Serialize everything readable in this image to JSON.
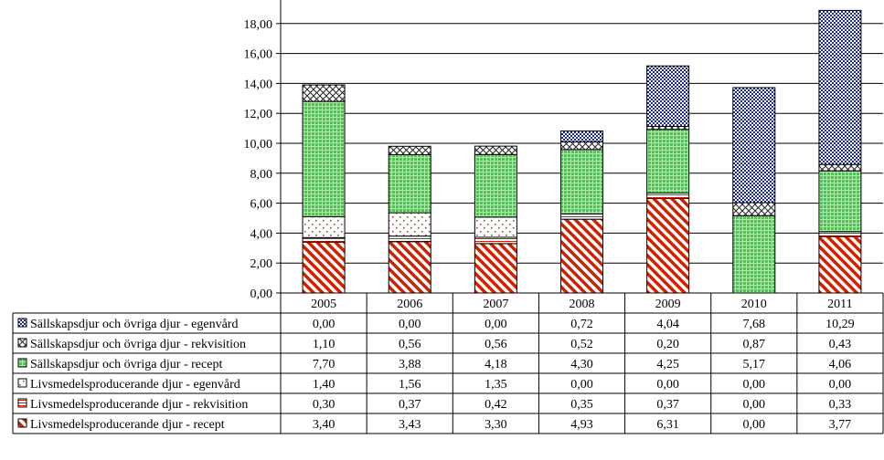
{
  "chart_data": {
    "type": "bar",
    "stacked": true,
    "categories": [
      "2005",
      "2006",
      "2007",
      "2008",
      "2009",
      "2010",
      "2011"
    ],
    "ylim": [
      0,
      20
    ],
    "y_ticks": [
      "0,00",
      "2,00",
      "4,00",
      "6,00",
      "8,00",
      "10,00",
      "12,00",
      "14,00",
      "16,00",
      "18,00"
    ],
    "grid": true,
    "legend_placement": "data-table-left",
    "series": [
      {
        "name": "Livsmedelsproducerande djur - recept",
        "values": [
          3.4,
          3.43,
          3.3,
          4.93,
          6.31,
          0.0,
          3.77
        ],
        "labels": [
          "3,40",
          "3,43",
          "3,30",
          "4,93",
          "6,31",
          "0,00",
          "3,77"
        ],
        "color": "#cc2200",
        "pattern": "diagonal-stripes"
      },
      {
        "name": "Livsmedelsproducerande djur - rekvisition",
        "values": [
          0.3,
          0.37,
          0.42,
          0.35,
          0.37,
          0.0,
          0.33
        ],
        "labels": [
          "0,30",
          "0,37",
          "0,42",
          "0,35",
          "0,37",
          "0,00",
          "0,33"
        ],
        "color": "#cc2200",
        "pattern": "horizontal-lines"
      },
      {
        "name": "Livsmedelsproducerande djur - egenvård",
        "values": [
          1.4,
          1.56,
          1.35,
          0.0,
          0.0,
          0.0,
          0.0
        ],
        "labels": [
          "1,40",
          "1,56",
          "1,35",
          "0,00",
          "0,00",
          "0,00",
          "0,00"
        ],
        "color": "#cc2200",
        "pattern": "sparse-dots"
      },
      {
        "name": "Sällskapsdjur och övriga djur - recept",
        "values": [
          7.7,
          3.88,
          4.18,
          4.3,
          4.25,
          5.17,
          4.06
        ],
        "labels": [
          "7,70",
          "3,88",
          "4,18",
          "4,30",
          "4,25",
          "5,17",
          "4,06"
        ],
        "color": "#33bb33",
        "pattern": "grid"
      },
      {
        "name": "Sällskapsdjur och övriga djur - rekvisition",
        "values": [
          1.1,
          0.56,
          0.56,
          0.52,
          0.2,
          0.87,
          0.43
        ],
        "labels": [
          "1,10",
          "0,56",
          "0,56",
          "0,52",
          "0,20",
          "0,87",
          "0,43"
        ],
        "color": "#333333",
        "pattern": "crosshatch"
      },
      {
        "name": "Sällskapsdjur och övriga djur - egenvård",
        "values": [
          0.0,
          0.0,
          0.0,
          0.72,
          4.04,
          7.68,
          10.29
        ],
        "labels": [
          "0,00",
          "0,00",
          "0,00",
          "0,72",
          "4,04",
          "7,68",
          "10,29"
        ],
        "color": "#1a2a8a",
        "pattern": "dense-dots"
      }
    ],
    "table_row_order": [
      5,
      4,
      3,
      2,
      1,
      0
    ]
  }
}
